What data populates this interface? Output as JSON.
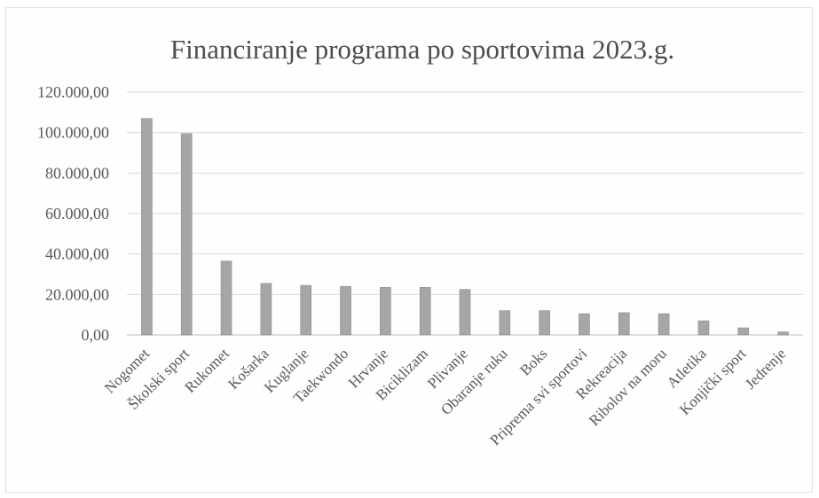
{
  "chart_data": {
    "type": "bar",
    "title": "Financiranje programa po sportovima 2023.g.",
    "categories": [
      "Nogomet",
      "Školski sport",
      "Rukomet",
      "Košarka",
      "Kuglanje",
      "Taekwondo",
      "Hrvanje",
      "Biciklizam",
      "Plivanje",
      "Obaranje ruku",
      "Boks",
      "Priprema svi sportovi",
      "Rekreacija",
      "Ribolov na moru",
      "Atletika",
      "Konjički sport",
      "Jedrenje"
    ],
    "values": [
      107000,
      99500,
      36500,
      25500,
      24500,
      24000,
      23500,
      23500,
      22500,
      12000,
      12000,
      10500,
      11000,
      10500,
      7000,
      3500,
      1500
    ],
    "ylim": [
      0,
      120000
    ],
    "yticks": [
      "0,00",
      "20.000,00",
      "40.000,00",
      "60.000,00",
      "80.000,00",
      "100.000,00",
      "120.000,00"
    ],
    "grid": true,
    "colors": {
      "bar": "#a6a6a6",
      "bar_stroke": "#8c8c8c",
      "grid": "#d9d9d9",
      "axis": "#bfbfbf"
    }
  }
}
